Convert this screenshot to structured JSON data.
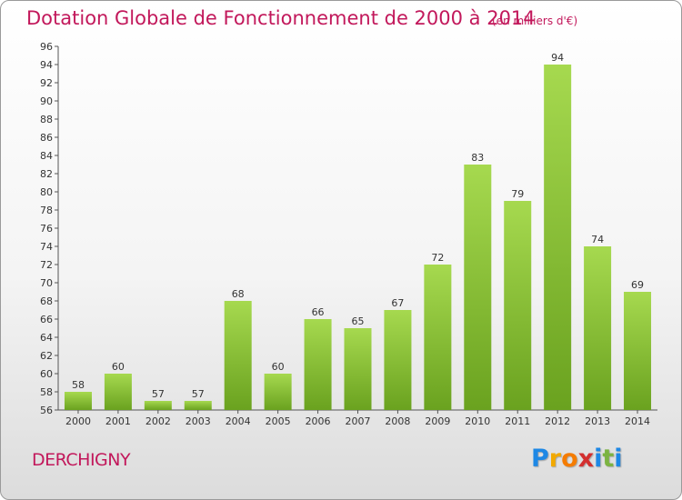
{
  "header": {
    "title": "Dotation Globale de Fonctionnement de 2000 à 2014",
    "unit": "(en milliers d'€)"
  },
  "footer": {
    "commune": "DERCHIGNY",
    "logo_letters": [
      "P",
      "r",
      "o",
      "x",
      "i",
      "t",
      "i"
    ],
    "logo_colors": [
      "#1e88e5",
      "#f2a900",
      "#f57c00",
      "#d32f2f",
      "#1e88e5",
      "#7cb342",
      "#1e88e5"
    ]
  },
  "colors": {
    "title": "#c2185b",
    "bar_light": "#a6d94f",
    "bar_dark": "#6aa21f"
  },
  "chart_data": {
    "type": "bar",
    "categories": [
      "2000",
      "2001",
      "2002",
      "2003",
      "2004",
      "2005",
      "2006",
      "2007",
      "2008",
      "2009",
      "2010",
      "2011",
      "2012",
      "2013",
      "2014"
    ],
    "values": [
      58,
      60,
      57,
      57,
      68,
      60,
      66,
      65,
      67,
      72,
      83,
      79,
      94,
      74,
      69
    ],
    "ylim": [
      56,
      96
    ],
    "ytick_step": 2,
    "grid": false,
    "data_labels": true
  }
}
